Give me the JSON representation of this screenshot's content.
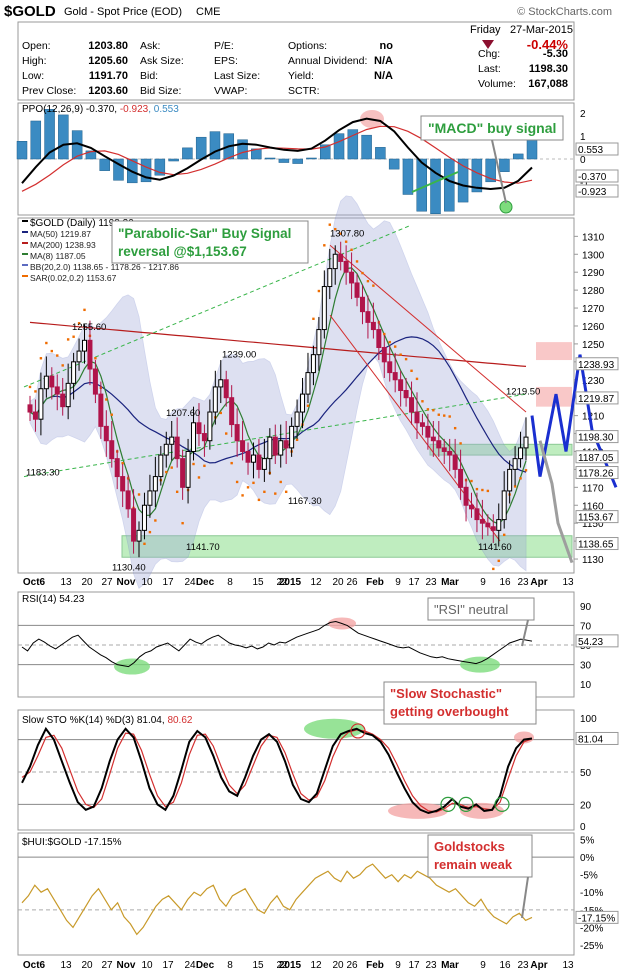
{
  "header": {
    "symbol": "$GOLD",
    "name": "Gold - Spot Price (EOD)",
    "exchange": "CME",
    "brand": "© StockCharts.com",
    "day": "Friday",
    "date": "27-Mar-2015",
    "change_pct": "-0.44%"
  },
  "quote": [
    [
      "Open:",
      "1203.80",
      "Ask:",
      "",
      "P/E:",
      "",
      "Options:",
      "no",
      "Chg:",
      "-5.30"
    ],
    [
      "High:",
      "1205.60",
      "Ask Size:",
      "",
      "EPS:",
      "",
      "Annual Dividend:",
      "N/A",
      "Last:",
      "1198.30"
    ],
    [
      "Low:",
      "1191.70",
      "Bid:",
      "",
      "Last Size:",
      "",
      "Yield:",
      "N/A",
      "Volume:",
      "167,088"
    ],
    [
      "Prev Close:",
      "1203.60",
      "Bid Size:",
      "",
      "VWAP:",
      "",
      "SCTR:",
      "",
      "",
      ""
    ]
  ],
  "colors": {
    "up": "#000000",
    "down": "#b0144a",
    "ma50": "#1a237e",
    "ma200": "#b71c1c",
    "ma8": "#2e7d32",
    "bb": "#9fa8da",
    "sar": "#ef6c00",
    "annot_green": "#2e9e3e",
    "annot_red": "#d32f2f",
    "histogram": "#3b8bc2",
    "hui": "#c89a2a",
    "proj_blue": "#1a2fd0",
    "proj_grey": "#9e9e9e"
  },
  "annotations": {
    "macd": "\"MACD\" buy signal",
    "psar_1": "\"Parabolic-Sar\" Buy Signal",
    "psar_2": "reversal @$1,153.67",
    "rsi": "\"RSI\" neutral",
    "sto_1": "\"Slow Stochastic\"",
    "sto_2": "getting overbought",
    "hui_1": "Goldstocks",
    "hui_2": "remain weak"
  },
  "chart_data": [
    {
      "type": "line",
      "panel": "PPO",
      "legend": [
        "PPO(12,26,9) -0.370, ",
        "-0.923",
        ", 0.553"
      ],
      "y_ticks": [
        "2",
        "1",
        "0",
        "-1"
      ],
      "ylim": [
        -2.3,
        2.3
      ],
      "right_labels": {
        "histogram": "0.553",
        "ppo": "-0.370",
        "signal": "-0.923"
      },
      "ppo": [
        -1.05,
        -0.35,
        0.28,
        0.62,
        0.68,
        0.48,
        0.12,
        -0.22,
        -0.55,
        -0.8,
        -0.9,
        -0.72,
        -0.4,
        -0.02,
        0.32,
        0.55,
        0.66,
        0.62,
        0.5,
        0.4,
        0.35,
        0.45,
        0.8,
        1.25,
        1.6,
        1.75,
        1.65,
        1.2,
        0.5,
        -0.15,
        -0.6,
        -0.95,
        -1.15,
        -1.25,
        -1.3,
        -1.25,
        -0.95,
        -0.37
      ],
      "signal": [
        -1.4,
        -1.1,
        -0.7,
        -0.25,
        0.12,
        0.32,
        0.35,
        0.2,
        -0.08,
        -0.35,
        -0.58,
        -0.68,
        -0.62,
        -0.45,
        -0.22,
        0.05,
        0.28,
        0.42,
        0.48,
        0.47,
        0.44,
        0.43,
        0.52,
        0.75,
        1.02,
        1.28,
        1.42,
        1.4,
        1.2,
        0.88,
        0.48,
        0.08,
        -0.3,
        -0.6,
        -0.85,
        -1.0,
        -1.05,
        -0.92
      ]
    },
    {
      "type": "candlestick",
      "panel": "Price",
      "legend": [
        "$GOLD (Daily) 1198.30",
        "MA(50) 1219.87",
        "MA(200) 1238.93",
        "MA(8) 1187.05",
        "BB(20,2.0) 1138.65 - 1178.26 - 1217.86",
        "SAR(0.02,0.2) 1153.67"
      ],
      "ylim": [
        1125,
        1318
      ],
      "y_ticks": [
        1310,
        1300,
        1290,
        1280,
        1270,
        1260,
        1250,
        1240,
        1230,
        1220,
        1210,
        1200,
        1190,
        1180,
        1170,
        1160,
        1150,
        1140,
        1130
      ],
      "x_labels": [
        "Oct6",
        "13",
        "20",
        "27",
        "Nov",
        "10",
        "17",
        "24",
        "Dec",
        "8",
        "15",
        "22",
        "2015",
        "12",
        "20",
        "26",
        "Feb",
        "9",
        "17",
        "23",
        "Mar",
        "9",
        "16",
        "23",
        "Apr",
        "13"
      ],
      "price_labels": [
        {
          "text": "1255.60",
          "v": 1255.6
        },
        {
          "text": "1183.30",
          "v": 1183.3
        },
        {
          "text": "1130.40",
          "v": 1130.4
        },
        {
          "text": "1141.70",
          "v": 1141.7
        },
        {
          "text": "1239.00",
          "v": 1239.0
        },
        {
          "text": "1207.60",
          "v": 1207.6
        },
        {
          "text": "1167.30",
          "v": 1167.3
        },
        {
          "text": "1307.80",
          "v": 1307.8
        },
        {
          "text": "1141.60",
          "v": 1141.6
        },
        {
          "text": "1219.50",
          "v": 1219.5
        }
      ],
      "right_boxes": [
        "1238.93",
        "1219.87",
        "1198.30",
        "1187.05",
        "1178.26",
        "1153.67",
        "1138.65"
      ],
      "closes": [
        1212,
        1208,
        1225,
        1232,
        1226,
        1222,
        1215,
        1228,
        1240,
        1246,
        1252,
        1236,
        1222,
        1204,
        1196,
        1186,
        1176,
        1168,
        1158,
        1140,
        1146,
        1160,
        1168,
        1176,
        1188,
        1194,
        1198,
        1186,
        1170,
        1190,
        1206,
        1200,
        1196,
        1212,
        1226,
        1230,
        1220,
        1205,
        1196,
        1190,
        1184,
        1188,
        1180,
        1186,
        1198,
        1188,
        1196,
        1192,
        1204,
        1212,
        1222,
        1234,
        1244,
        1258,
        1282,
        1292,
        1300,
        1296,
        1290,
        1284,
        1276,
        1268,
        1262,
        1258,
        1248,
        1240,
        1234,
        1230,
        1224,
        1220,
        1212,
        1206,
        1204,
        1198,
        1196,
        1192,
        1190,
        1188,
        1180,
        1170,
        1160,
        1158,
        1152,
        1150,
        1148,
        1146,
        1152,
        1168,
        1180,
        1186,
        1192,
        1198
      ]
    },
    {
      "type": "line",
      "panel": "RSI",
      "legend": "RSI(14) 54.23",
      "ylim": [
        0,
        100
      ],
      "y_ticks": [
        90,
        70,
        50,
        30,
        10
      ],
      "right_label": "54.23",
      "values": [
        48,
        44,
        52,
        56,
        53,
        49,
        46,
        50,
        54,
        58,
        60,
        54,
        48,
        44,
        40,
        37,
        33,
        30,
        29,
        28,
        32,
        38,
        42,
        44,
        48,
        50,
        52,
        48,
        44,
        50,
        56,
        53,
        51,
        55,
        58,
        60,
        56,
        52,
        50,
        49,
        47,
        49,
        46,
        48,
        52,
        50,
        53,
        52,
        55,
        58,
        60,
        62,
        64,
        66,
        70,
        73,
        74,
        72,
        70,
        66,
        62,
        60,
        58,
        56,
        54,
        52,
        50,
        48,
        47,
        48,
        45,
        42,
        40,
        38,
        37,
        38,
        36,
        35,
        34,
        33,
        32,
        31,
        33,
        36,
        40,
        44,
        48,
        52,
        54,
        56,
        55,
        54
      ]
    },
    {
      "type": "line",
      "panel": "Slow STO",
      "legend": [
        "Slow STO %K(14) %D(3) 81.04, ",
        "80.62"
      ],
      "ylim": [
        0,
        100
      ],
      "y_ticks": [
        100,
        80,
        50,
        20,
        0
      ],
      "right_label": "81.04",
      "k": [
        40,
        55,
        75,
        90,
        80,
        60,
        40,
        22,
        15,
        18,
        35,
        60,
        80,
        90,
        82,
        60,
        35,
        20,
        15,
        28,
        52,
        78,
        88,
        82,
        65,
        45,
        32,
        28,
        45,
        65,
        80,
        85,
        78,
        60,
        38,
        25,
        22,
        30,
        52,
        74,
        85,
        88,
        90,
        86,
        84,
        78,
        66,
        50,
        35,
        22,
        15,
        12,
        14,
        18,
        25,
        18,
        16,
        20,
        14,
        15,
        28,
        55,
        72,
        80,
        81
      ],
      "d": [
        45,
        50,
        65,
        82,
        84,
        72,
        52,
        32,
        20,
        17,
        25,
        48,
        72,
        86,
        85,
        70,
        48,
        28,
        18,
        22,
        40,
        66,
        84,
        85,
        74,
        55,
        38,
        30,
        38,
        56,
        74,
        84,
        82,
        68,
        48,
        30,
        24,
        27,
        42,
        64,
        80,
        87,
        89,
        88,
        85,
        80,
        72,
        58,
        42,
        28,
        19,
        14,
        13,
        16,
        21,
        20,
        17,
        18,
        16,
        15,
        22,
        44,
        65,
        78,
        80.62
      ]
    },
    {
      "type": "area",
      "panel": "HUI:GOLD",
      "legend": "$HUI:$GOLD -17.15%",
      "ylim": [
        -27,
        6
      ],
      "y_ticks": [
        "5%",
        "0%",
        "-5%",
        "-10%",
        "-15%",
        "-20%",
        "-25%"
      ],
      "right_label": "-17.15%",
      "values": [
        -13,
        -11,
        -8,
        -10,
        -9,
        -12,
        -15,
        -18,
        -20,
        -17,
        -14,
        -11,
        -9,
        -12,
        -15,
        -13,
        -17,
        -19,
        -22,
        -20,
        -17,
        -14,
        -12,
        -11,
        -13,
        -15,
        -12,
        -10,
        -11,
        -9,
        -8,
        -12,
        -14,
        -11,
        -10,
        -9,
        -12,
        -15,
        -16,
        -13,
        -11,
        -14,
        -15,
        -12,
        -10,
        -8,
        -6,
        -5,
        -4,
        -6,
        -7,
        -4,
        -6,
        -5,
        -3,
        -2,
        -4,
        -6,
        -5,
        -7,
        -5,
        -6,
        -4,
        -5,
        -6,
        -8,
        -9,
        -10,
        -9,
        -11,
        -13,
        -14,
        -12,
        -15,
        -17,
        -18,
        -19,
        -17,
        -16,
        -18,
        -17.15
      ]
    }
  ]
}
